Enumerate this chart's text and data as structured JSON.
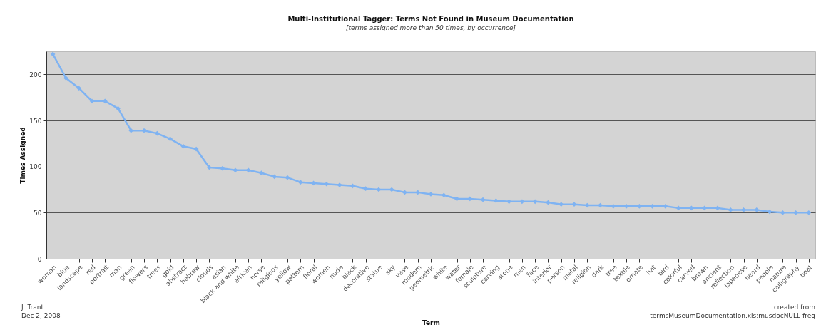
{
  "chart_data": {
    "type": "line",
    "title": "Multi-Institutional Tagger: Terms Not Found in Museum Documentation",
    "subtitle": "[terms assigned more than 50 times, by occurrence]",
    "xlabel": "Term",
    "ylabel": "Times Assigned",
    "annotations": [
      "J. Trant\nDec 2, 2008",
      "created from\ntermsMuseumDocumentation.xls:musdocNULL-freq"
    ],
    "categories": [
      "woman",
      "blue",
      "landscape",
      "red",
      "portrait",
      "man",
      "green",
      "flowers",
      "trees",
      "gold",
      "abstract",
      "hebrew",
      "clouds",
      "asian",
      "black and white",
      "african",
      "horse",
      "religious",
      "yellow",
      "pattern",
      "floral",
      "women",
      "nude",
      "black",
      "decorative",
      "statue",
      "sky",
      "vase",
      "modern",
      "geometric",
      "white",
      "water",
      "female",
      "sculpture",
      "carving",
      "stone",
      "men",
      "face",
      "interior",
      "person",
      "metal",
      "religion",
      "dark",
      "tree",
      "textile",
      "ornate",
      "hat",
      "bird",
      "colorful",
      "carved",
      "brown",
      "ancient",
      "reflection",
      "japanese",
      "beard",
      "people",
      "nature",
      "calligraphy",
      "boat"
    ],
    "series": [
      {
        "color": "#7fb3f2",
        "values": [
          222,
          196,
          185,
          171,
          171,
          163,
          139,
          139,
          136,
          130,
          122,
          119,
          99,
          98,
          96,
          96,
          93,
          89,
          88,
          83,
          82,
          81,
          80,
          79,
          76,
          75,
          75,
          72,
          72,
          70,
          69,
          65,
          65,
          64,
          63,
          62,
          62,
          62,
          61,
          59,
          59,
          58,
          58,
          57,
          57,
          57,
          57,
          57,
          55,
          55,
          55,
          55,
          53,
          53,
          53,
          51,
          50,
          50,
          50
        ]
      }
    ],
    "ylim": [
      0,
      225
    ],
    "yticks": [
      0,
      50,
      100,
      150,
      200
    ],
    "grid": "y",
    "marker": "diamond",
    "line_style": "solid",
    "legend": false
  }
}
